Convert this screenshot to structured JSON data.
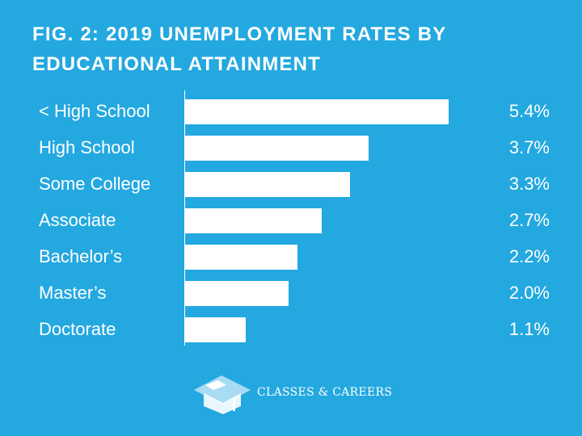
{
  "chart_data": {
    "type": "bar",
    "orientation": "horizontal",
    "title": "FIG. 2: 2019 UNEMPLOYMENT RATES BY EDUCATIONAL ATTAINMENT",
    "categories": [
      "< High School",
      "High School",
      "Some College",
      "Associate",
      "Bachelor’s",
      "Master’s",
      "Doctorate"
    ],
    "values": [
      5.4,
      3.7,
      3.3,
      2.7,
      2.2,
      2.0,
      1.1
    ],
    "value_labels": [
      "5.4%",
      "3.7%",
      "3.3%",
      "2.7%",
      "2.2%",
      "2.0%",
      "1.1%"
    ],
    "unit": "%",
    "grid": false,
    "colors": {
      "background": "#24a8e0",
      "bar": "#ffffff",
      "text": "#ffffff"
    }
  },
  "brand": {
    "name": "CLASSES & CAREERS",
    "icon": "graduation-cap-icon"
  }
}
